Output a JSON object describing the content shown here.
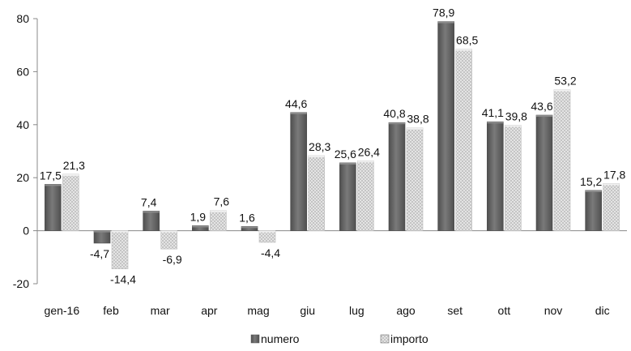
{
  "chart_data": {
    "type": "bar",
    "categories": [
      "gen-16",
      "feb",
      "mar",
      "apr",
      "mag",
      "giu",
      "lug",
      "ago",
      "set",
      "ott",
      "nov",
      "dic"
    ],
    "series": [
      {
        "name": "numero",
        "values": [
          17.5,
          -4.7,
          7.4,
          1.9,
          1.6,
          44.6,
          25.6,
          40.8,
          78.9,
          41.1,
          43.6,
          15.2
        ],
        "labels": [
          "17,5",
          "-4,7",
          "7,4",
          "1,9",
          "1,6",
          "44,6",
          "25,6",
          "40,8",
          "78,9",
          "41,1",
          "43,6",
          "15,2"
        ],
        "color": "#6b6b6b"
      },
      {
        "name": "importo",
        "values": [
          21.3,
          -14.4,
          -6.9,
          7.6,
          -4.4,
          28.3,
          26.4,
          38.8,
          68.5,
          39.8,
          53.2,
          17.8
        ],
        "labels": [
          "21,3",
          "-14,4",
          "-6,9",
          "7,6",
          "-4,4",
          "28,3",
          "26,4",
          "38,8",
          "68,5",
          "39,8",
          "53,2",
          "17,8"
        ],
        "color": "#d9d9d9"
      }
    ],
    "y_ticks": [
      "-20",
      "0",
      "20",
      "40",
      "60",
      "80"
    ],
    "ylim": [
      -20,
      80
    ],
    "title": "",
    "xlabel": "",
    "ylabel": "",
    "grid": false,
    "legend": "bottom-center"
  }
}
